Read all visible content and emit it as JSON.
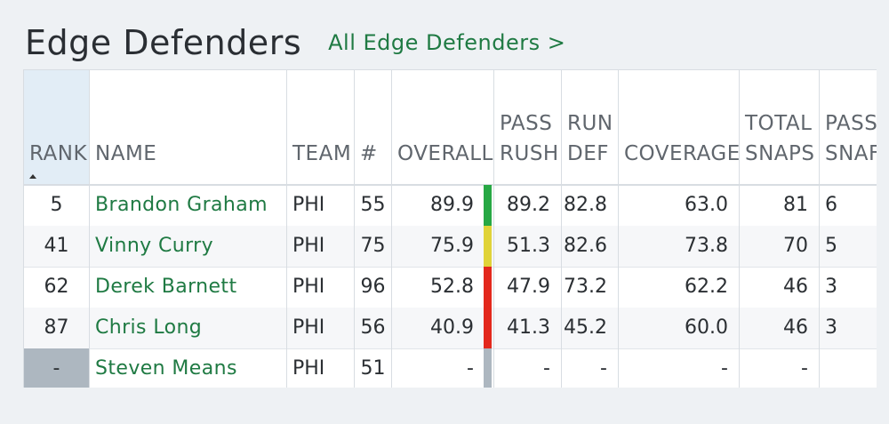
{
  "header": {
    "title": "Edge Defenders",
    "all_link": "All Edge Defenders >"
  },
  "table": {
    "columns": {
      "rank": [
        "RANK"
      ],
      "name": [
        "NAME"
      ],
      "team": [
        "TEAM"
      ],
      "number": [
        "#"
      ],
      "overall": [
        "OVERALL"
      ],
      "pass_rush": [
        "PASS",
        "RUSH"
      ],
      "run_def": [
        "RUN",
        "DEF"
      ],
      "coverage": [
        "COVERAGE"
      ],
      "total_snaps": [
        "TOTAL",
        "SNAPS"
      ],
      "pass_snaps": [
        "PASS",
        "SNAF"
      ]
    },
    "sorted_by": "RANK",
    "rows": [
      {
        "rank": "5",
        "name": "Brandon Graham",
        "team": "PHI",
        "number": "55",
        "overall": "89.9",
        "grade": "green",
        "pass_rush": "89.2",
        "run_def": "82.8",
        "coverage": "63.0",
        "total_snaps": "81",
        "pass_snaps": "6"
      },
      {
        "rank": "41",
        "name": "Vinny Curry",
        "team": "PHI",
        "number": "75",
        "overall": "75.9",
        "grade": "yellow",
        "pass_rush": "51.3",
        "run_def": "82.6",
        "coverage": "73.8",
        "total_snaps": "70",
        "pass_snaps": "5"
      },
      {
        "rank": "62",
        "name": "Derek Barnett",
        "team": "PHI",
        "number": "96",
        "overall": "52.8",
        "grade": "red",
        "pass_rush": "47.9",
        "run_def": "73.2",
        "coverage": "62.2",
        "total_snaps": "46",
        "pass_snaps": "3"
      },
      {
        "rank": "87",
        "name": "Chris Long",
        "team": "PHI",
        "number": "56",
        "overall": "40.9",
        "grade": "red",
        "pass_rush": "41.3",
        "run_def": "45.2",
        "coverage": "60.0",
        "total_snaps": "46",
        "pass_snaps": "3"
      },
      {
        "rank": "-",
        "name": "Steven Means",
        "team": "PHI",
        "number": "51",
        "overall": "-",
        "grade": "gray",
        "pass_rush": "-",
        "run_def": "-",
        "coverage": "-",
        "total_snaps": "-",
        "pass_snaps": ""
      }
    ]
  },
  "colors": {
    "green": "#27a844",
    "yellow": "#e0d338",
    "red": "#e3281c",
    "gray": "#adb7c0",
    "link": "#1f7a43"
  }
}
